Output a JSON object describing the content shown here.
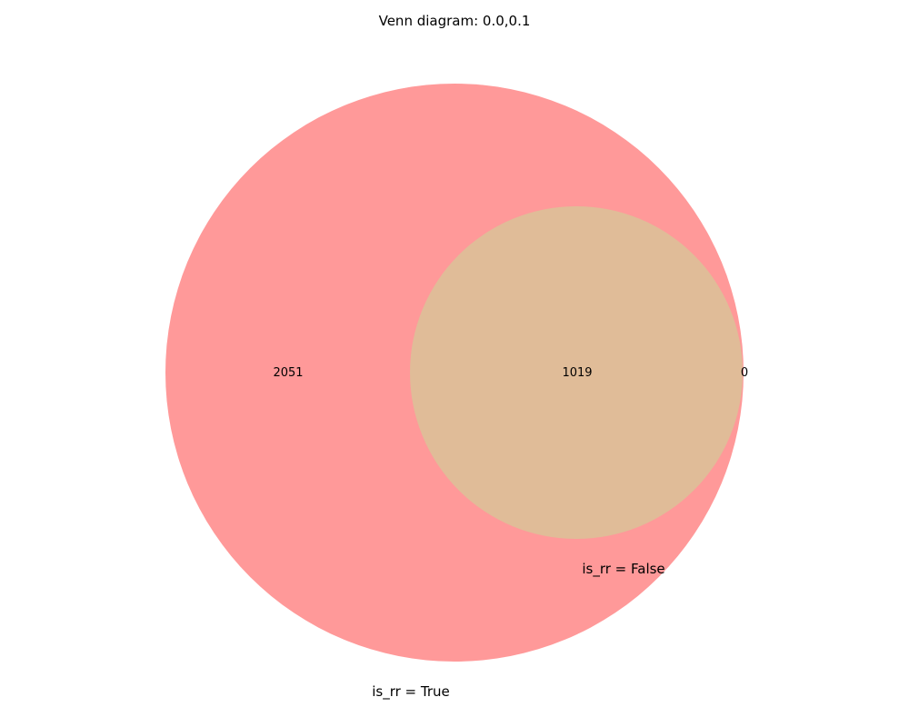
{
  "title": "Venn diagram: 0.0,0.1",
  "sets": [
    {
      "key": "a",
      "label": "is_rr = True",
      "color": "#ff9999"
    },
    {
      "key": "b",
      "label": "is_rr = False",
      "color": "#e0bc98"
    }
  ],
  "regions": {
    "only_a": "2051",
    "both": "1019",
    "only_b": "0"
  }
}
